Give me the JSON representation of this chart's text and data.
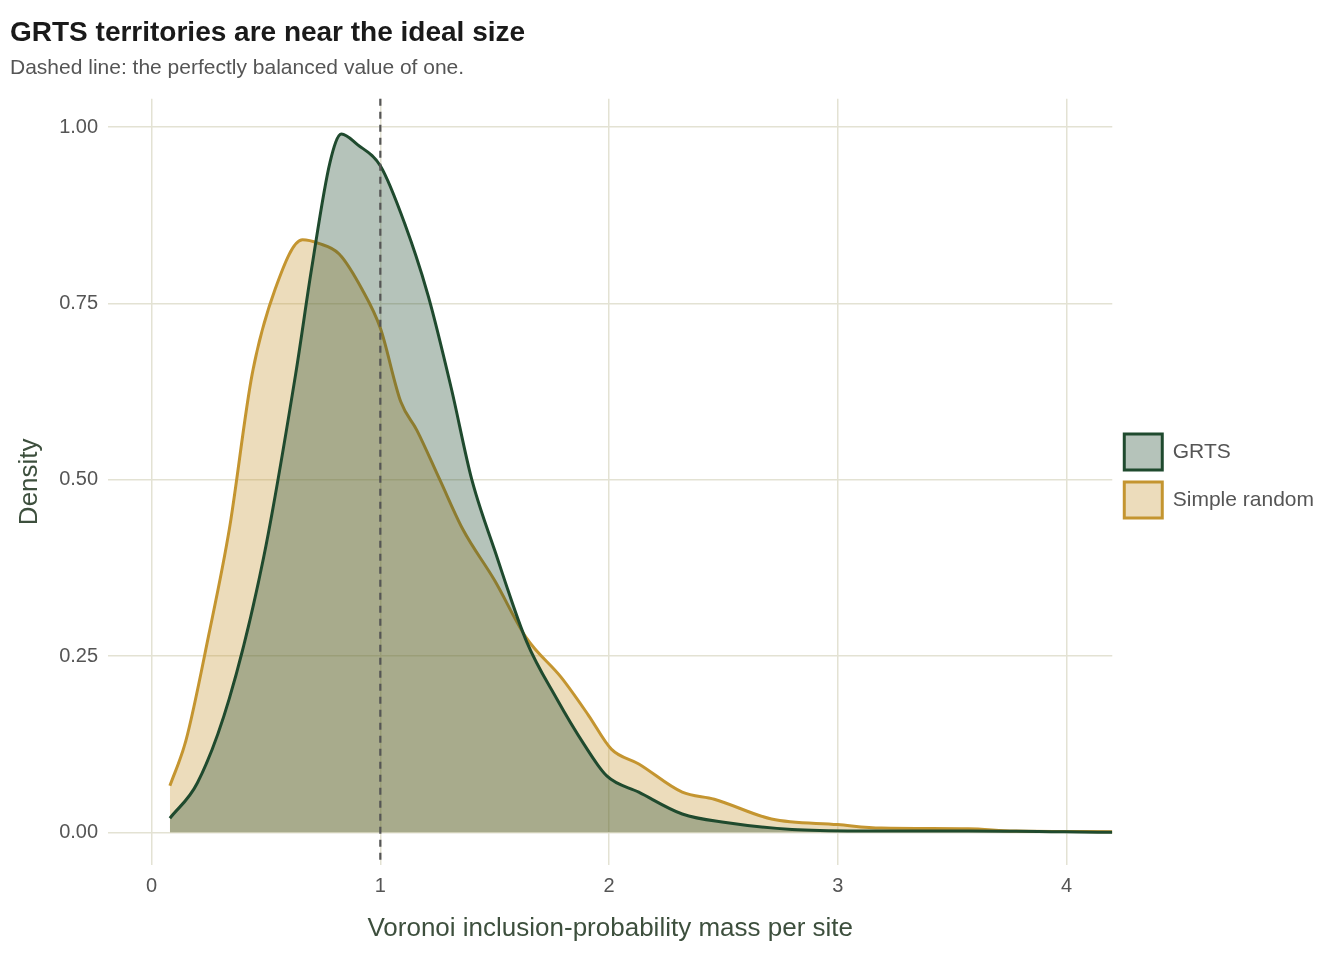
{
  "chart_data": {
    "type": "area",
    "title": "GRTS territories are near the ideal size",
    "subtitle": "Dashed line: the perfectly balanced value of one.",
    "xlabel": "Voronoi inclusion-probability mass per site",
    "ylabel": "Density",
    "series": [
      {
        "name": "GRTS",
        "color": "#1f4a2e",
        "x": [
          0.08,
          0.2,
          0.34,
          0.49,
          0.63,
          0.7,
          0.78,
          0.83,
          0.9,
          1.0,
          1.11,
          1.21,
          1.31,
          1.4,
          1.5,
          1.64,
          1.77,
          1.89,
          1.99,
          2.13,
          2.32,
          2.51,
          2.8,
          3.09,
          3.57,
          4.2
        ],
        "values": [
          0.02,
          0.07,
          0.19,
          0.39,
          0.65,
          0.8,
          0.95,
          0.99,
          0.975,
          0.945,
          0.86,
          0.76,
          0.63,
          0.5,
          0.4,
          0.27,
          0.19,
          0.125,
          0.08,
          0.057,
          0.026,
          0.014,
          0.004,
          0.002,
          0.002,
          0
        ]
      },
      {
        "name": "Simple random",
        "color": "#c49530",
        "x": [
          0.08,
          0.15,
          0.25,
          0.34,
          0.44,
          0.54,
          0.66,
          0.73,
          0.82,
          0.92,
          1.0,
          1.09,
          1.16,
          1.26,
          1.36,
          1.5,
          1.64,
          1.79,
          1.91,
          2.01,
          2.13,
          2.32,
          2.46,
          2.71,
          3.0,
          3.19,
          3.57,
          3.77,
          4.2
        ],
        "values": [
          0.066,
          0.13,
          0.28,
          0.43,
          0.65,
          0.77,
          0.84,
          0.835,
          0.82,
          0.77,
          0.715,
          0.61,
          0.57,
          0.5,
          0.43,
          0.357,
          0.275,
          0.22,
          0.166,
          0.118,
          0.097,
          0.057,
          0.047,
          0.019,
          0.011,
          0.006,
          0.005,
          0.002,
          0.001
        ]
      }
    ],
    "xlim": [
      -0.19,
      4.2
    ],
    "xticks": [
      0,
      1,
      2,
      3,
      4
    ],
    "ylim": [
      -0.046,
      1.04
    ],
    "yticks": [
      {
        "value": 0,
        "label": "0.00"
      },
      {
        "value": 0.25,
        "label": "0.25"
      },
      {
        "value": 0.5,
        "label": "0.50"
      },
      {
        "value": 0.75,
        "label": "0.75"
      },
      {
        "value": 1,
        "label": "1.00"
      }
    ],
    "ref_lines": [
      {
        "axis": "x",
        "value": 1,
        "color": "#555555",
        "line_style": "dashed"
      }
    ],
    "grid": true,
    "legend": "right",
    "marker": "none",
    "line_style": "solid"
  }
}
